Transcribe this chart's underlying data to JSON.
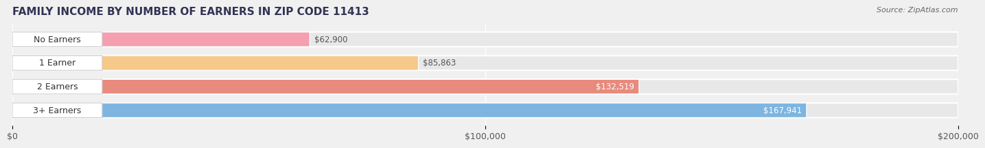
{
  "title": "FAMILY INCOME BY NUMBER OF EARNERS IN ZIP CODE 11413",
  "source": "Source: ZipAtlas.com",
  "categories": [
    "No Earners",
    "1 Earner",
    "2 Earners",
    "3+ Earners"
  ],
  "values": [
    62900,
    85863,
    132519,
    167941
  ],
  "bar_colors": [
    "#f4a0b0",
    "#f5c98a",
    "#e88a7d",
    "#7eb5e0"
  ],
  "bar_edge_colors": [
    "#e8809a",
    "#e0a860",
    "#d06858",
    "#5090c0"
  ],
  "label_colors": [
    "#555555",
    "#555555",
    "#ffffff",
    "#ffffff"
  ],
  "background_color": "#f0f0f0",
  "bar_background_color": "#e8e8e8",
  "xlim": [
    0,
    200000
  ],
  "xticks": [
    0,
    100000,
    200000
  ],
  "xtick_labels": [
    "$0",
    "$100,000",
    "$200,000"
  ],
  "title_fontsize": 11,
  "source_fontsize": 8,
  "label_fontsize": 9,
  "value_fontsize": 8.5,
  "tick_fontsize": 9,
  "bar_height": 0.62,
  "fig_width": 14.06,
  "fig_height": 2.33
}
